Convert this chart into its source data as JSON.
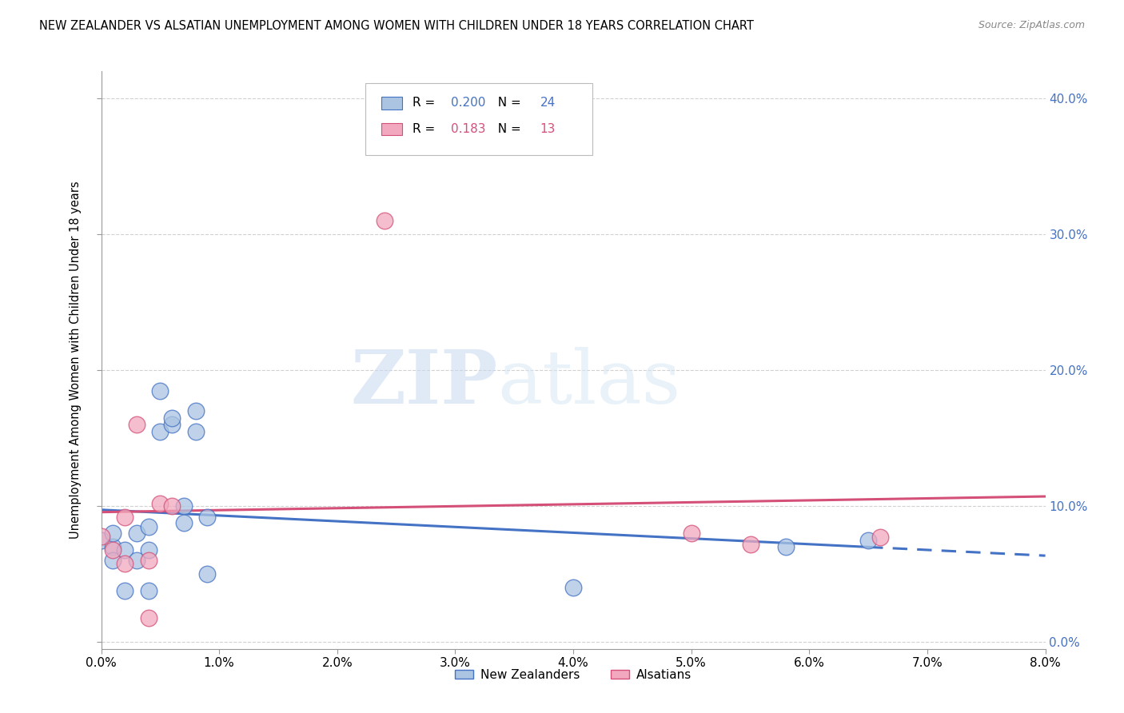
{
  "title": "NEW ZEALANDER VS ALSATIAN UNEMPLOYMENT AMONG WOMEN WITH CHILDREN UNDER 18 YEARS CORRELATION CHART",
  "source": "Source: ZipAtlas.com",
  "ylabel": "Unemployment Among Women with Children Under 18 years",
  "legend_label1": "New Zealanders",
  "legend_label2": "Alsatians",
  "R1": 0.2,
  "N1": 24,
  "R2": 0.183,
  "N2": 13,
  "color_blue": "#aac4e2",
  "color_pink": "#f2a8be",
  "line_blue": "#4472c4",
  "line_pink": "#d45078",
  "xlim": [
    0.0,
    0.08
  ],
  "ylim": [
    -0.005,
    0.42
  ],
  "xticks": [
    0.0,
    0.01,
    0.02,
    0.03,
    0.04,
    0.05,
    0.06,
    0.07,
    0.08
  ],
  "yticks": [
    0.0,
    0.1,
    0.2,
    0.3,
    0.4
  ],
  "nz_x": [
    0.0,
    0.001,
    0.001,
    0.001,
    0.002,
    0.002,
    0.003,
    0.003,
    0.004,
    0.004,
    0.004,
    0.005,
    0.005,
    0.006,
    0.006,
    0.007,
    0.007,
    0.008,
    0.008,
    0.009,
    0.009,
    0.04,
    0.058,
    0.065
  ],
  "nz_y": [
    0.075,
    0.07,
    0.06,
    0.08,
    0.068,
    0.038,
    0.08,
    0.06,
    0.085,
    0.068,
    0.038,
    0.185,
    0.155,
    0.16,
    0.165,
    0.1,
    0.088,
    0.17,
    0.155,
    0.092,
    0.05,
    0.04,
    0.07,
    0.075
  ],
  "als_x": [
    0.0,
    0.001,
    0.002,
    0.002,
    0.003,
    0.004,
    0.004,
    0.005,
    0.006,
    0.024,
    0.05,
    0.055,
    0.066
  ],
  "als_y": [
    0.078,
    0.068,
    0.092,
    0.058,
    0.16,
    0.06,
    0.018,
    0.102,
    0.1,
    0.31,
    0.08,
    0.072,
    0.077
  ],
  "watermark_zip": "ZIP",
  "watermark_atlas": "atlas",
  "background_color": "#ffffff",
  "grid_color": "#cccccc"
}
